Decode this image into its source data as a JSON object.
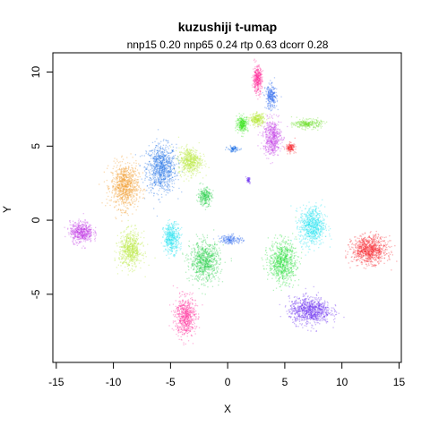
{
  "chart_data": {
    "type": "scatter",
    "title": "kuzushiji t-umap",
    "subtitle": "nnp15 0.20 nnp65 0.24 rtp 0.63 dcorr 0.28",
    "xlabel": "X",
    "ylabel": "Y",
    "xlim": [
      -15.3,
      15.2
    ],
    "ylim": [
      -9.6,
      11.3
    ],
    "x_ticks": [
      -15,
      -10,
      -5,
      0,
      5,
      10,
      15
    ],
    "y_ticks": [
      -5,
      0,
      5,
      10
    ],
    "grid": false,
    "legend": "none",
    "marker_opacity": 0.35,
    "clusters": [
      {
        "color": "#1E6FE6",
        "center": [
          -5.8,
          3.5
        ],
        "spread": [
          1.3,
          1.6
        ],
        "weight": 1.0
      },
      {
        "color": "#F2961E",
        "center": [
          -9.0,
          2.3
        ],
        "spread": [
          1.2,
          1.5
        ],
        "weight": 0.9
      },
      {
        "color": "#B6E83A",
        "center": [
          -3.3,
          4.0
        ],
        "spread": [
          1.0,
          0.9
        ],
        "weight": 0.6
      },
      {
        "color": "#C23CE6",
        "center": [
          -12.8,
          -0.8
        ],
        "spread": [
          1.0,
          0.7
        ],
        "weight": 0.6
      },
      {
        "color": "#B6E83A",
        "center": [
          -8.5,
          -2.0
        ],
        "spread": [
          1.0,
          1.2
        ],
        "weight": 0.7
      },
      {
        "color": "#1FE2F0",
        "center": [
          -4.9,
          -1.2
        ],
        "spread": [
          0.7,
          1.0
        ],
        "weight": 0.5
      },
      {
        "color": "#2CD14C",
        "center": [
          -2.0,
          1.6
        ],
        "spread": [
          0.6,
          0.6
        ],
        "weight": 0.3
      },
      {
        "color": "#2CD14C",
        "center": [
          -2.0,
          -2.8
        ],
        "spread": [
          1.3,
          1.3
        ],
        "weight": 0.9
      },
      {
        "color": "#2E6BEF",
        "center": [
          0.3,
          -1.3
        ],
        "spread": [
          1.0,
          0.3
        ],
        "weight": 0.2
      },
      {
        "color": "#FF2C9C",
        "center": [
          -3.7,
          -6.5
        ],
        "spread": [
          0.9,
          1.3
        ],
        "weight": 0.7
      },
      {
        "color": "#2CE040",
        "center": [
          4.8,
          -2.8
        ],
        "spread": [
          1.2,
          1.4
        ],
        "weight": 0.9
      },
      {
        "color": "#1FE2F0",
        "center": [
          7.4,
          -0.4
        ],
        "spread": [
          1.1,
          1.3
        ],
        "weight": 0.8
      },
      {
        "color": "#6A2BF0",
        "center": [
          7.2,
          -6.1
        ],
        "spread": [
          1.8,
          0.9
        ],
        "weight": 1.0
      },
      {
        "color": "#F5262E",
        "center": [
          12.4,
          -2.0
        ],
        "spread": [
          1.5,
          0.9
        ],
        "weight": 1.0
      },
      {
        "color": "#FF2C9C",
        "center": [
          2.6,
          9.5
        ],
        "spread": [
          0.4,
          0.9
        ],
        "weight": 0.4
      },
      {
        "color": "#3AE61F",
        "center": [
          1.3,
          6.5
        ],
        "spread": [
          0.5,
          0.5
        ],
        "weight": 0.3
      },
      {
        "color": "#B6E83A",
        "center": [
          2.6,
          6.8
        ],
        "spread": [
          0.6,
          0.4
        ],
        "weight": 0.3
      },
      {
        "color": "#2E6BEF",
        "center": [
          3.8,
          8.3
        ],
        "spread": [
          0.5,
          0.8
        ],
        "weight": 0.3
      },
      {
        "color": "#C23CE6",
        "center": [
          3.9,
          5.6
        ],
        "spread": [
          0.8,
          1.2
        ],
        "weight": 0.6
      },
      {
        "color": "#6FE02E",
        "center": [
          7.0,
          6.5
        ],
        "spread": [
          1.2,
          0.3
        ],
        "weight": 0.3
      },
      {
        "color": "#F5262E",
        "center": [
          5.5,
          4.9
        ],
        "spread": [
          0.4,
          0.3
        ],
        "weight": 0.15
      },
      {
        "color": "#1E6FE6",
        "center": [
          0.5,
          4.8
        ],
        "spread": [
          0.5,
          0.2
        ],
        "weight": 0.1
      },
      {
        "color": "#6A2BF0",
        "center": [
          1.8,
          2.7
        ],
        "spread": [
          0.2,
          0.2
        ],
        "weight": 0.05
      }
    ]
  }
}
